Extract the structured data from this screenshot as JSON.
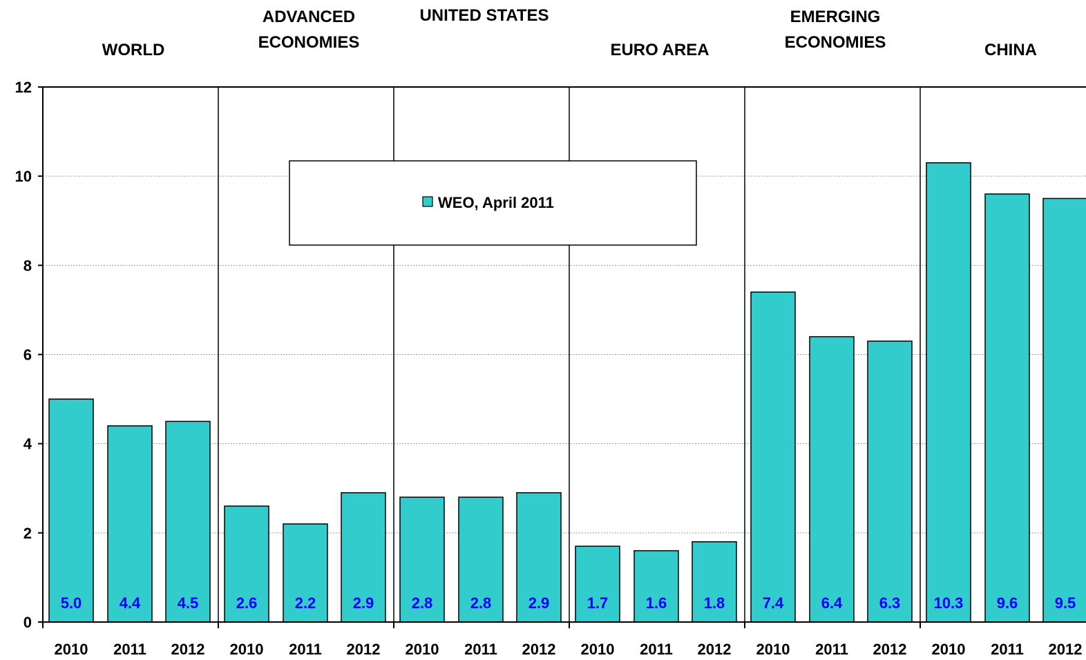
{
  "chart_data": {
    "type": "bar",
    "groups": [
      {
        "name": [
          "WORLD"
        ],
        "years": [
          "2010",
          "2011",
          "2012"
        ],
        "values": [
          5.0,
          4.4,
          4.5
        ]
      },
      {
        "name": [
          "ADVANCED",
          "ECONOMIES"
        ],
        "years": [
          "2010",
          "2011",
          "2012"
        ],
        "values": [
          2.6,
          2.2,
          2.9
        ]
      },
      {
        "name": [
          "UNITED STATES"
        ],
        "years": [
          "2010",
          "2011",
          "2012"
        ],
        "values": [
          2.8,
          2.8,
          2.9
        ]
      },
      {
        "name": [
          "EURO AREA"
        ],
        "years": [
          "2010",
          "2011",
          "2012"
        ],
        "values": [
          1.7,
          1.6,
          1.8
        ]
      },
      {
        "name": [
          "EMERGING",
          "ECONOMIES"
        ],
        "years": [
          "2010",
          "2011",
          "2012"
        ],
        "values": [
          7.4,
          6.4,
          6.3
        ]
      },
      {
        "name": [
          "CHINA"
        ],
        "years": [
          "2010",
          "2011",
          "2012"
        ],
        "values": [
          10.3,
          9.6,
          9.5
        ]
      }
    ],
    "series": [
      {
        "name": "WEO, April 2011"
      }
    ],
    "ylim": [
      0,
      12
    ],
    "yticks": [
      0,
      2,
      4,
      6,
      8,
      10,
      12
    ],
    "grid": true,
    "legend": "top-center",
    "colors": {
      "bar": "#33cccc",
      "value_label": "#0000ff",
      "axis": "#000000",
      "grid": "#999999"
    }
  }
}
